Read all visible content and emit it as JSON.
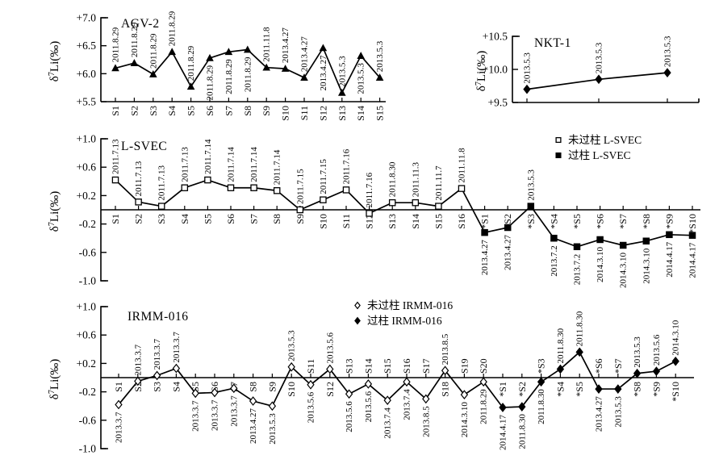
{
  "figure": {
    "background": "#ffffff",
    "ink": "#000000"
  },
  "chart_data": [
    {
      "id": "agv2",
      "type": "line",
      "title": "AGV-2",
      "ylabel": "δ⁷Li(‰)",
      "ylim": [
        5.5,
        7.0
      ],
      "marker": "triangle",
      "yticks": [
        {
          "value": 7.0,
          "label": "+7.0"
        },
        {
          "value": 6.5,
          "label": "+6.5"
        },
        {
          "value": 6.0,
          "label": "+6.0"
        },
        {
          "value": 5.5,
          "label": "+5.5"
        }
      ],
      "categories": [
        "S1",
        "S2",
        "S3",
        "S4",
        "S5",
        "S6",
        "S7",
        "S8",
        "S9",
        "S10",
        "S11",
        "S12",
        "S13",
        "S14",
        "S15"
      ],
      "values": [
        6.1,
        6.19,
        5.99,
        6.39,
        5.77,
        6.28,
        6.39,
        6.43,
        6.11,
        6.09,
        5.93,
        6.46,
        5.66,
        6.32,
        5.93
      ],
      "dates": [
        "2011.8.29",
        "2011.8.29",
        "2011.8.29",
        "2011.8.29",
        "2011.8.29",
        "2011.8.29",
        "2011.8.29",
        "2011.8.29",
        "2011.11.8",
        "2013.4.27",
        "2013.4.27",
        "2013.4.27",
        "2013.5.3",
        "2013.5.3",
        "2013.5.3"
      ],
      "date_sides": [
        "above",
        "above",
        "above",
        "above",
        "above",
        "below",
        "below",
        "below",
        "above",
        "above",
        "above",
        "below",
        "above",
        "below",
        "above"
      ],
      "legend": null
    },
    {
      "id": "nkt1",
      "type": "line",
      "title": "NKT-1",
      "ylabel": "δ⁷Li(‰)",
      "ylim": [
        9.5,
        10.5
      ],
      "marker": "diamond",
      "yticks": [
        {
          "value": 10.5,
          "label": "+10.5"
        },
        {
          "value": 10.0,
          "label": "+10.0"
        },
        {
          "value": 9.5,
          "label": "+9.5"
        }
      ],
      "categories": [],
      "values": [
        9.7,
        9.85,
        9.95
      ],
      "dates": [
        "2013.5.3",
        "2013.5.3",
        "2013.5.3"
      ],
      "date_sides": [
        "above",
        "above",
        "above"
      ],
      "legend": null
    },
    {
      "id": "lsvec",
      "type": "line",
      "title": "L-SVEC",
      "ylabel": "δ⁷Li(‰)",
      "ylim": [
        -1.0,
        1.0
      ],
      "marker": "square",
      "yticks": [
        {
          "value": 1.0,
          "label": "+1.0"
        },
        {
          "value": 0.6,
          "label": "+0.6"
        },
        {
          "value": 0.2,
          "label": "+0.2"
        },
        {
          "value": -0.2,
          "label": "-0.2"
        },
        {
          "value": -0.6,
          "label": "-0.6"
        },
        {
          "value": -1.0,
          "label": "-1.0"
        }
      ],
      "categories": [
        "S1",
        "S2",
        "S3",
        "S4",
        "S5",
        "S6",
        "S7",
        "S8",
        "S9",
        "S10",
        "S11",
        "S12",
        "S13",
        "S14",
        "S15",
        "S16",
        "*S1",
        "*S2",
        "*S3",
        "*S4",
        "*S5",
        "*S6",
        "*S7",
        "*S8",
        "*S9",
        "*S10"
      ],
      "values": [
        0.42,
        0.11,
        0.05,
        0.31,
        0.42,
        0.31,
        0.31,
        0.27,
        0.0,
        0.14,
        0.28,
        -0.05,
        0.1,
        0.1,
        0.05,
        0.3,
        -0.32,
        -0.25,
        0.05,
        -0.4,
        -0.52,
        -0.42,
        -0.5,
        -0.44,
        -0.35,
        -0.36
      ],
      "fills": [
        "open",
        "open",
        "open",
        "open",
        "open",
        "open",
        "open",
        "open",
        "open",
        "open",
        "open",
        "open",
        "open",
        "open",
        "open",
        "open",
        "solid",
        "solid",
        "solid",
        "solid",
        "solid",
        "solid",
        "solid",
        "solid",
        "solid",
        "solid"
      ],
      "dates": [
        "2011.7.13",
        "2011.7.13",
        "2011.7.13",
        "2011.7.13",
        "2011.7.14",
        "2011.7.14",
        "2011.7.14",
        "2011.7.14",
        "2011.7.15",
        "2011.7.15",
        "2011.7.16",
        "2011.7.16",
        "2011.8.30",
        "2011.11.3",
        "2011.11.7",
        "2011.11.8",
        "2013.4.27",
        "2013.4.27",
        "2013.5.3",
        "2013.7.2",
        "2013.7.2",
        "2014.3.10",
        "2014.3.10",
        "2014.3.10",
        "2014.4.17",
        "2014.4.17"
      ],
      "date_sides": [
        "above",
        "above",
        "above",
        "above",
        "above",
        "above",
        "above",
        "above",
        "above",
        "above",
        "above",
        "above",
        "above",
        "above",
        "above",
        "above",
        "below",
        "below",
        "above",
        "below",
        "below",
        "below",
        "below",
        "below",
        "below",
        "below"
      ],
      "legend": {
        "position": "top-right",
        "items": [
          {
            "fill": "open",
            "marker": "square",
            "label": "未过柱 L-SVEC"
          },
          {
            "fill": "solid",
            "marker": "square",
            "label": "过柱 L-SVEC"
          }
        ]
      }
    },
    {
      "id": "irmm",
      "type": "line",
      "title": "IRMM-016",
      "ylabel": "δ⁷Li(‰)",
      "ylim": [
        -1.0,
        1.0
      ],
      "marker": "diamond",
      "yticks": [
        {
          "value": 1.0,
          "label": "+1.0"
        },
        {
          "value": 0.6,
          "label": "+0.6"
        },
        {
          "value": 0.2,
          "label": "+0.2"
        },
        {
          "value": -0.2,
          "label": "-0.2"
        },
        {
          "value": -0.6,
          "label": "-0.6"
        },
        {
          "value": -1.0,
          "label": "-1.0"
        }
      ],
      "categories": [
        "S1",
        "S2",
        "S3",
        "S4",
        "S5",
        "S6",
        "S7",
        "S8",
        "S9",
        "S10",
        "S11",
        "S12",
        "S13",
        "S14",
        "S15",
        "S16",
        "S17",
        "S18",
        "S19",
        "S20",
        "*S1",
        "*S2",
        "*S3",
        "*S4",
        "*S5",
        "*S6",
        "*S7",
        "*S8",
        "*S9",
        "*S10"
      ],
      "values": [
        -0.38,
        -0.05,
        0.03,
        0.13,
        -0.22,
        -0.21,
        -0.15,
        -0.33,
        -0.4,
        0.15,
        -0.1,
        0.12,
        -0.23,
        -0.09,
        -0.32,
        -0.06,
        -0.3,
        0.1,
        -0.24,
        -0.06,
        -0.42,
        -0.41,
        -0.06,
        0.12,
        0.36,
        -0.16,
        -0.16,
        0.06,
        0.09,
        0.23
      ],
      "fills": [
        "open",
        "open",
        "open",
        "open",
        "open",
        "open",
        "open",
        "open",
        "open",
        "open",
        "open",
        "open",
        "open",
        "open",
        "open",
        "open",
        "open",
        "open",
        "open",
        "open",
        "solid",
        "solid",
        "solid",
        "solid",
        "solid",
        "solid",
        "solid",
        "solid",
        "solid",
        "solid"
      ],
      "dates": [
        "2013.3.7",
        "2013.3.7",
        "2013.3.7",
        "2013.3.7",
        "2013.3.7",
        "2013.3.7",
        "2013.3.7",
        "2013.4.27",
        "2013.5.3",
        "2013.5.3",
        "2013.5.6",
        "2013.5.6",
        "2013.5.6",
        "2013.5.6",
        "2013.7.4",
        "2013.7.4",
        "2013.8.5",
        "2013.8.5",
        "2014.3.10",
        "2011.8.29",
        "2014.4.17",
        "2011.8.30",
        "2011.8.30",
        "2011.8.30",
        "2011.8.30",
        "2013.4.27",
        "2013.5.3",
        "2013.5.3",
        "2013.5.6",
        "2014.3.10"
      ],
      "date_sides": [
        "below",
        "above",
        "above",
        "above",
        "below",
        "below",
        "below",
        "below",
        "below",
        "above",
        "below",
        "above",
        "below",
        "below",
        "below",
        "below",
        "below",
        "above",
        "below",
        "below",
        "below",
        "below",
        "below",
        "above",
        "above",
        "below",
        "below",
        "above",
        "above",
        "above"
      ],
      "xlabel_sides": [
        "below",
        "below",
        "below",
        "below",
        "below",
        "below",
        "below",
        "below",
        "below",
        "below",
        "above",
        "below",
        "above",
        "above",
        "above",
        "above",
        "above",
        "below",
        "above",
        "above",
        "below",
        "below",
        "above",
        "below",
        "below",
        "above",
        "above",
        "below",
        "below",
        "below"
      ],
      "legend": {
        "position": "top-center",
        "items": [
          {
            "fill": "open",
            "marker": "diamond",
            "label": "未过柱 IRMM-016"
          },
          {
            "fill": "solid",
            "marker": "diamond",
            "label": "过柱 IRMM-016"
          }
        ]
      }
    }
  ]
}
